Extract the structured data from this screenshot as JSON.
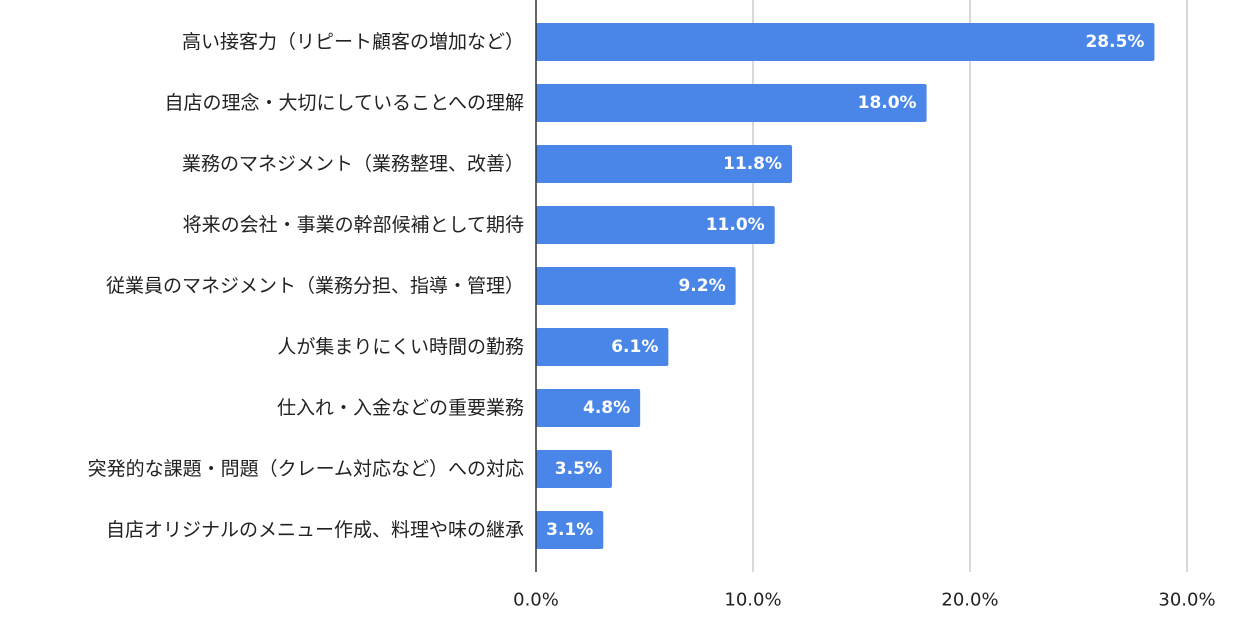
{
  "chart_data": {
    "type": "bar",
    "orientation": "horizontal",
    "title": "",
    "xlabel": "",
    "ylabel": "",
    "categories": [
      "高い接客力（リピート顧客の増加など）",
      "自店の理念・大切にしていることへの理解",
      "業務のマネジメント（業務整理、改善）",
      "将来の会社・事業の幹部候補として期待",
      "従業員のマネジメント（業務分担、指導・管理）",
      "人が集まりにくい時間の勤務",
      "仕入れ・入金などの重要業務",
      "突発的な課題・問題（クレーム対応など）への対応",
      "自店オリジナルのメニュー作成、料理や味の継承"
    ],
    "values": [
      28.5,
      18.0,
      11.8,
      11.0,
      9.2,
      6.1,
      4.8,
      3.5,
      3.1
    ],
    "value_labels": [
      "28.5%",
      "18.0%",
      "11.8%",
      "11.0%",
      "9.2%",
      "6.1%",
      "4.8%",
      "3.5%",
      "3.1%"
    ],
    "xlim": [
      0,
      30
    ],
    "x_ticks": [
      0,
      10,
      20,
      30
    ],
    "x_tick_labels": [
      "0.0%",
      "10.0%",
      "20.0%",
      "30.0%"
    ],
    "grid": true,
    "bar_color": "#4a86e8",
    "grid_color": "#cccccc",
    "axis_color": "#333333"
  }
}
